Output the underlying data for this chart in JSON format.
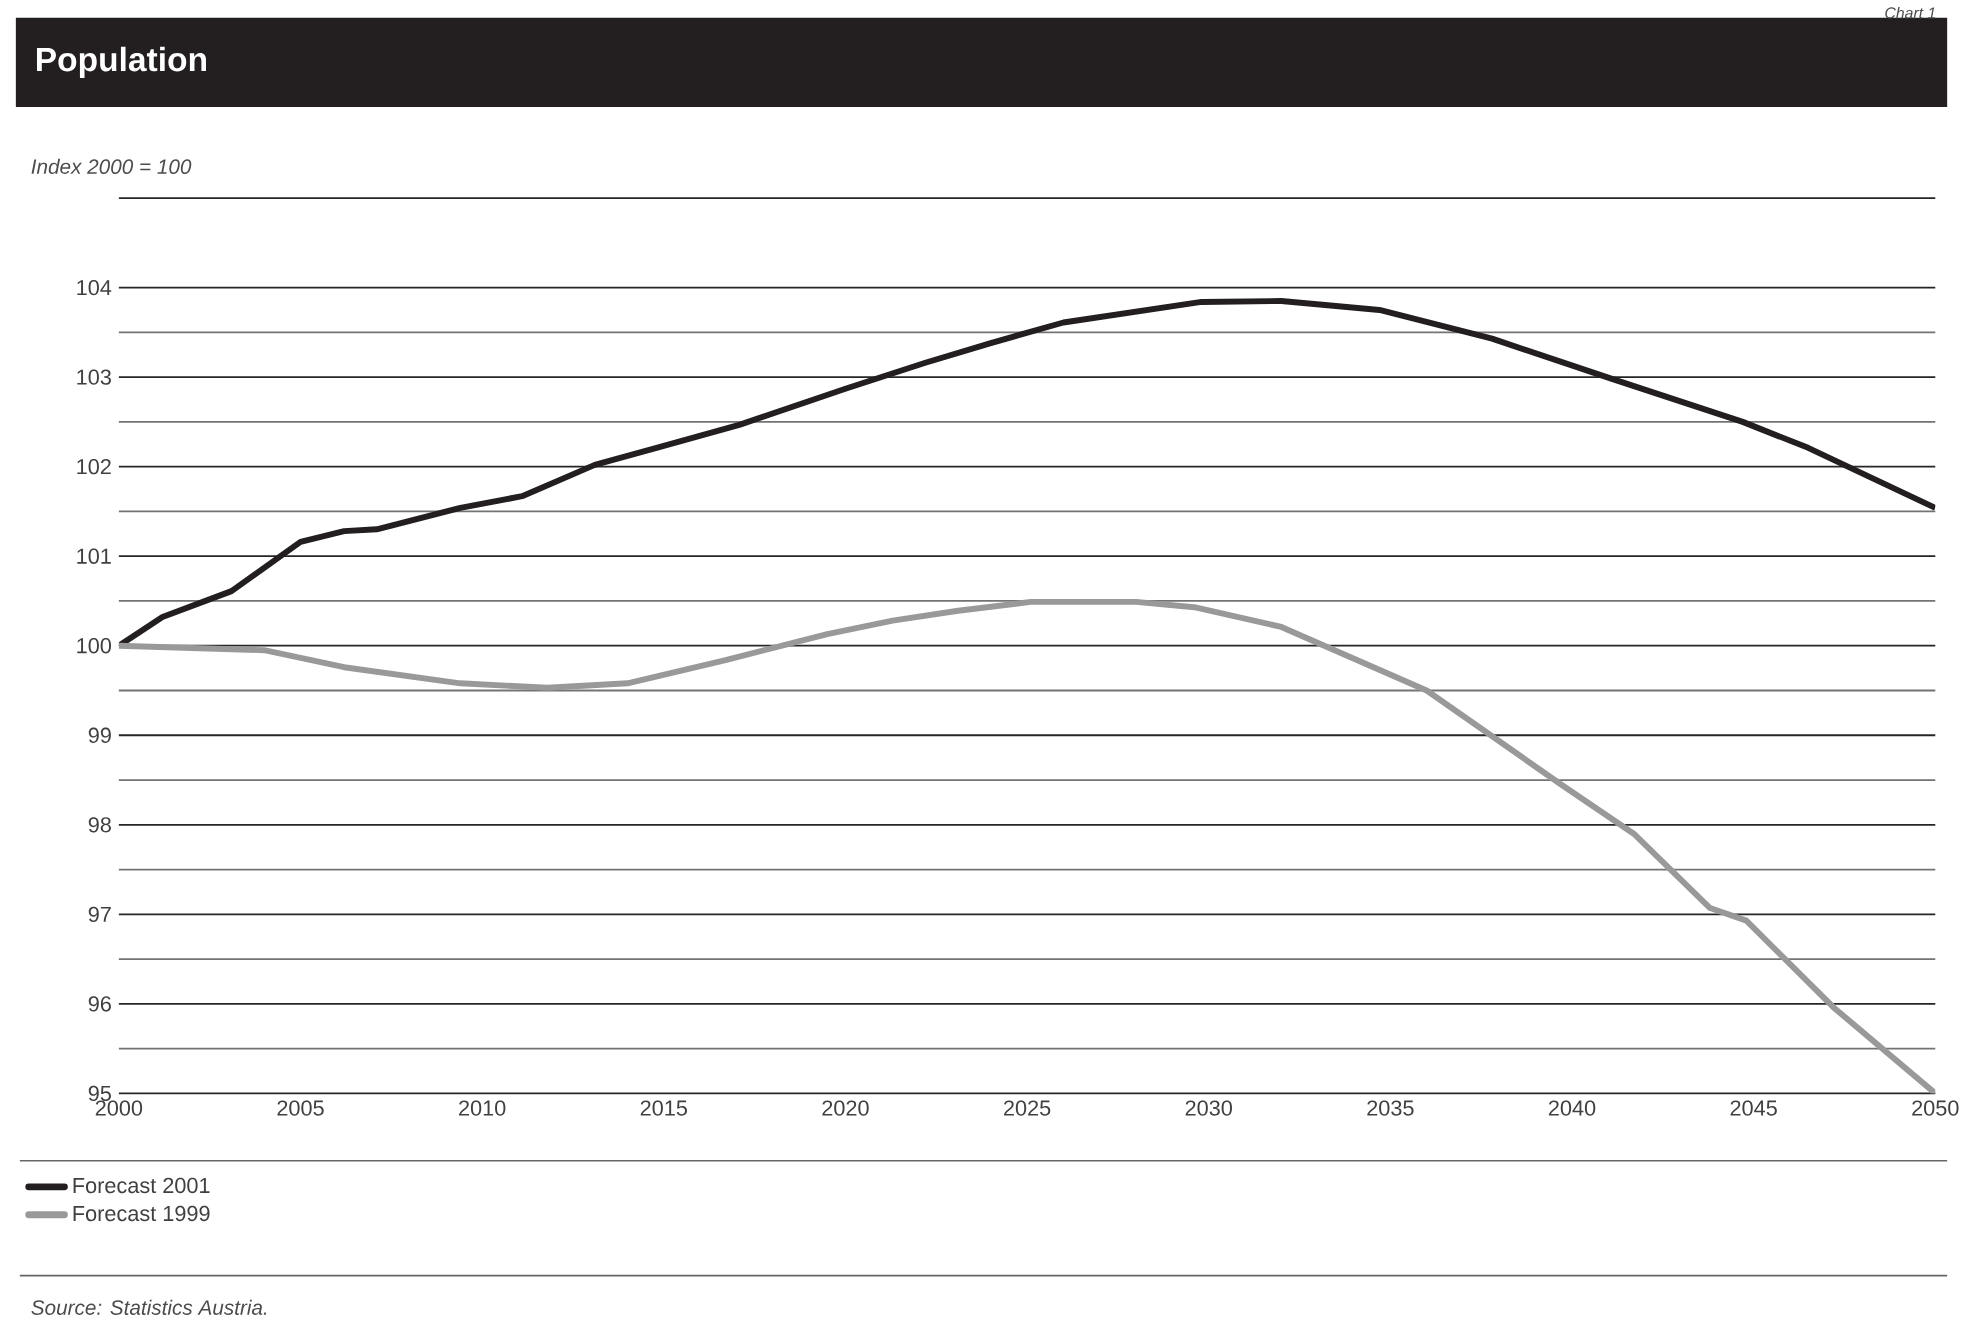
{
  "chart_data": {
    "type": "line",
    "title": "Population",
    "ylabel": "Index 2000 = 100",
    "annotations": [
      "Source: Statistics Austria.",
      "Chart 1"
    ],
    "xlim": [
      2000,
      2050
    ],
    "xticks": [
      2000,
      2005,
      2010,
      2015,
      2020,
      2025,
      2030,
      2035,
      2040,
      2045,
      2050
    ],
    "ylim": [
      95,
      105
    ],
    "yticks": [
      95,
      96,
      97,
      98,
      99,
      100,
      101,
      102,
      103,
      104
    ],
    "grid": "y",
    "legend": "bottom left",
    "series": [
      {
        "name": "Forecast 2001",
        "color": "#231f20",
        "x": [
          2000,
          2001.2,
          2003.1,
          2005.0,
          2006.2,
          2007.1,
          2009.4,
          2011.1,
          2013.1,
          2014.9,
          2017.1,
          2020.0,
          2022.2,
          2024.0,
          2026.0,
          2029.8,
          2032.0,
          2034.7,
          2037.8,
          2041.1,
          2044.7,
          2046.5,
          2050
        ],
        "values": [
          100.0,
          100.32,
          100.61,
          101.16,
          101.28,
          101.3,
          101.54,
          101.67,
          102.02,
          102.22,
          102.47,
          102.87,
          103.16,
          103.38,
          103.61,
          103.84,
          103.85,
          103.75,
          103.43,
          102.98,
          102.5,
          102.21,
          101.54
        ]
      },
      {
        "name": "Forecast 1999",
        "color": "#999999",
        "x": [
          2000,
          2004.0,
          2006.2,
          2009.4,
          2011.8,
          2014.0,
          2016.7,
          2019.5,
          2021.3,
          2023.1,
          2025.1,
          2028.0,
          2029.6,
          2032.0,
          2036.0,
          2039.7,
          2041.7,
          2043.8,
          2044.8,
          2047.2,
          2050
        ],
        "values": [
          100.0,
          99.95,
          99.76,
          99.58,
          99.53,
          99.58,
          99.84,
          100.13,
          100.28,
          100.39,
          100.49,
          100.49,
          100.43,
          100.21,
          99.5,
          98.45,
          97.9,
          97.07,
          96.93,
          95.96,
          95.0
        ]
      }
    ]
  }
}
